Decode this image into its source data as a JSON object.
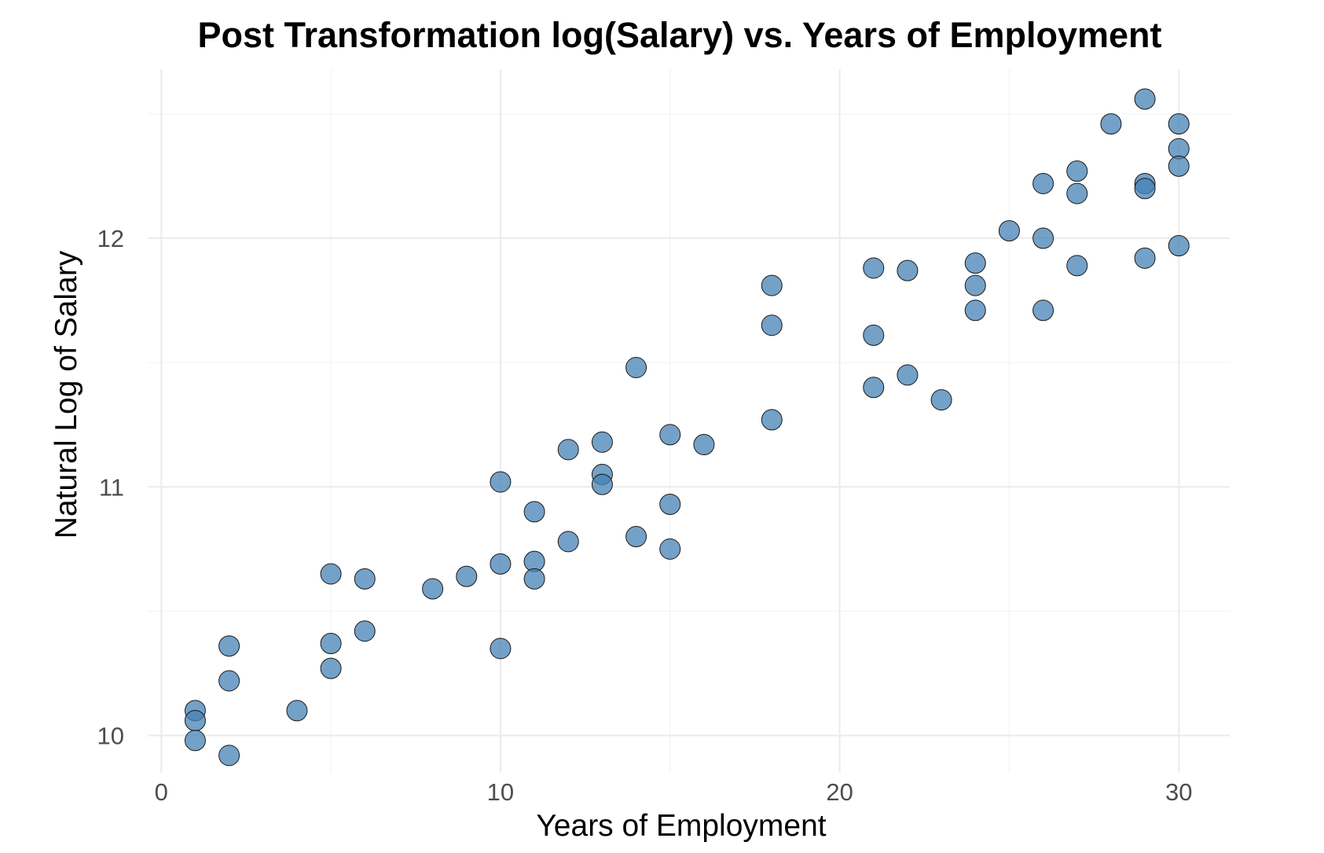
{
  "chart_data": {
    "type": "scatter",
    "title": "Post Transformation log(Salary) vs. Years of Employment",
    "xlabel": "Years of Employment",
    "ylabel": "Natural Log of Salary",
    "xlim": [
      -0.4,
      31.5
    ],
    "ylim": [
      9.85,
      12.68
    ],
    "x_ticks": [
      0,
      10,
      20,
      30
    ],
    "x_tick_labels": [
      "0",
      "10",
      "20",
      "30"
    ],
    "y_ticks": [
      10,
      11,
      12
    ],
    "y_tick_labels": [
      "10",
      "11",
      "12"
    ],
    "x_minor_ticks": [
      5,
      15,
      25
    ],
    "y_minor_ticks": [
      10.5,
      11.5,
      12.5
    ],
    "grid": true,
    "point_color": "#4682B4",
    "point_opacity": 0.75,
    "series": [
      {
        "x": [
          1,
          1,
          1,
          2,
          2,
          2,
          4,
          5,
          5,
          5,
          6,
          6,
          8,
          9,
          10,
          10,
          10,
          11,
          11,
          11,
          12,
          12,
          13,
          13,
          13,
          14,
          14,
          15,
          15,
          15,
          16,
          18,
          18,
          18,
          21,
          21,
          21,
          22,
          22,
          23,
          24,
          24,
          24,
          25,
          26,
          26,
          26,
          27,
          27,
          27,
          28,
          29,
          29,
          29,
          29,
          30,
          30,
          30,
          30
        ],
        "y": [
          10.1,
          10.06,
          9.98,
          10.36,
          10.22,
          9.92,
          10.1,
          10.65,
          10.37,
          10.27,
          10.63,
          10.42,
          10.59,
          10.64,
          11.02,
          10.69,
          10.35,
          10.9,
          10.7,
          10.63,
          11.15,
          10.78,
          11.18,
          11.05,
          11.01,
          11.48,
          10.8,
          11.21,
          10.93,
          10.75,
          11.17,
          11.81,
          11.65,
          11.27,
          11.88,
          11.61,
          11.4,
          11.87,
          11.45,
          11.35,
          11.9,
          11.81,
          11.71,
          12.03,
          12.22,
          12.0,
          11.71,
          12.27,
          12.18,
          11.89,
          12.46,
          12.56,
          12.22,
          12.2,
          11.92,
          12.46,
          12.36,
          12.29,
          11.97
        ]
      }
    ]
  }
}
